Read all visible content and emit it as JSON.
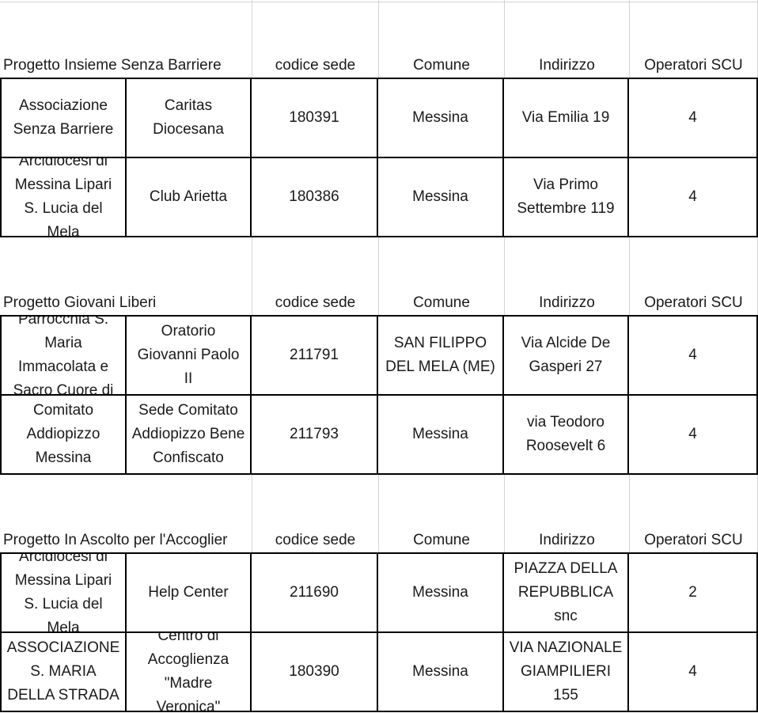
{
  "colors": {
    "background": "#ffffff",
    "text": "#1a1a1a",
    "table_border": "#000000",
    "faint_gridline": "#d4d4d4"
  },
  "tables": [
    {
      "title": "Progetto Insieme Senza Barriere",
      "columns": {
        "codice": "codice sede",
        "comune": "Comune",
        "indirizzo": "Indirizzo",
        "operatori": "Operatori SCU"
      },
      "rows": [
        {
          "ente": "Associazione Senza Barriere",
          "sede": "Caritas Diocesana",
          "codice": "180391",
          "comune": "Messina",
          "indirizzo": "Via Emilia 19",
          "operatori": "4"
        },
        {
          "ente": "Arcidiocesi di Messina Lipari S. Lucia del Mela",
          "sede": "Club Arietta",
          "codice": "180386",
          "comune": "Messina",
          "indirizzo": "Via Primo Settembre 119",
          "operatori": "4"
        }
      ]
    },
    {
      "title": "Progetto Giovani Liberi",
      "columns": {
        "codice": "codice sede",
        "comune": "Comune",
        "indirizzo": "Indirizzo",
        "operatori": "Operatori SCU"
      },
      "rows": [
        {
          "ente": "Parrocchia S. Maria Immacolata e Sacro Cuore di",
          "sede": "Oratorio Giovanni Paolo II",
          "codice": "211791",
          "comune": "SAN FILIPPO DEL MELA (ME)",
          "indirizzo": "Via Alcide De Gasperi 27",
          "operatori": "4"
        },
        {
          "ente": "Comitato Addiopizzo Messina",
          "sede": "Sede Comitato Addiopizzo Bene Confiscato",
          "codice": "211793",
          "comune": "Messina",
          "indirizzo": "via Teodoro Roosevelt 6",
          "operatori": "4"
        }
      ]
    },
    {
      "title": "Progetto In Ascolto per l'Accoglier",
      "columns": {
        "codice": "codice sede",
        "comune": "Comune",
        "indirizzo": "Indirizzo",
        "operatori": "Operatori SCU"
      },
      "rows": [
        {
          "ente": "Arcidiocesi di Messina Lipari S. Lucia del Mela",
          "sede": "Help Center",
          "codice": "211690",
          "comune": "Messina",
          "indirizzo": "PIAZZA DELLA REPUBBLICA snc",
          "operatori": "2"
        },
        {
          "ente": "ASSOCIAZIONE S. MARIA DELLA STRADA",
          "sede": "Centro di Accoglienza \"Madre Veronica\"",
          "codice": "180390",
          "comune": "Messina",
          "indirizzo": "VIA NAZIONALE GIAMPILIERI 155",
          "operatori": "4"
        }
      ]
    }
  ]
}
